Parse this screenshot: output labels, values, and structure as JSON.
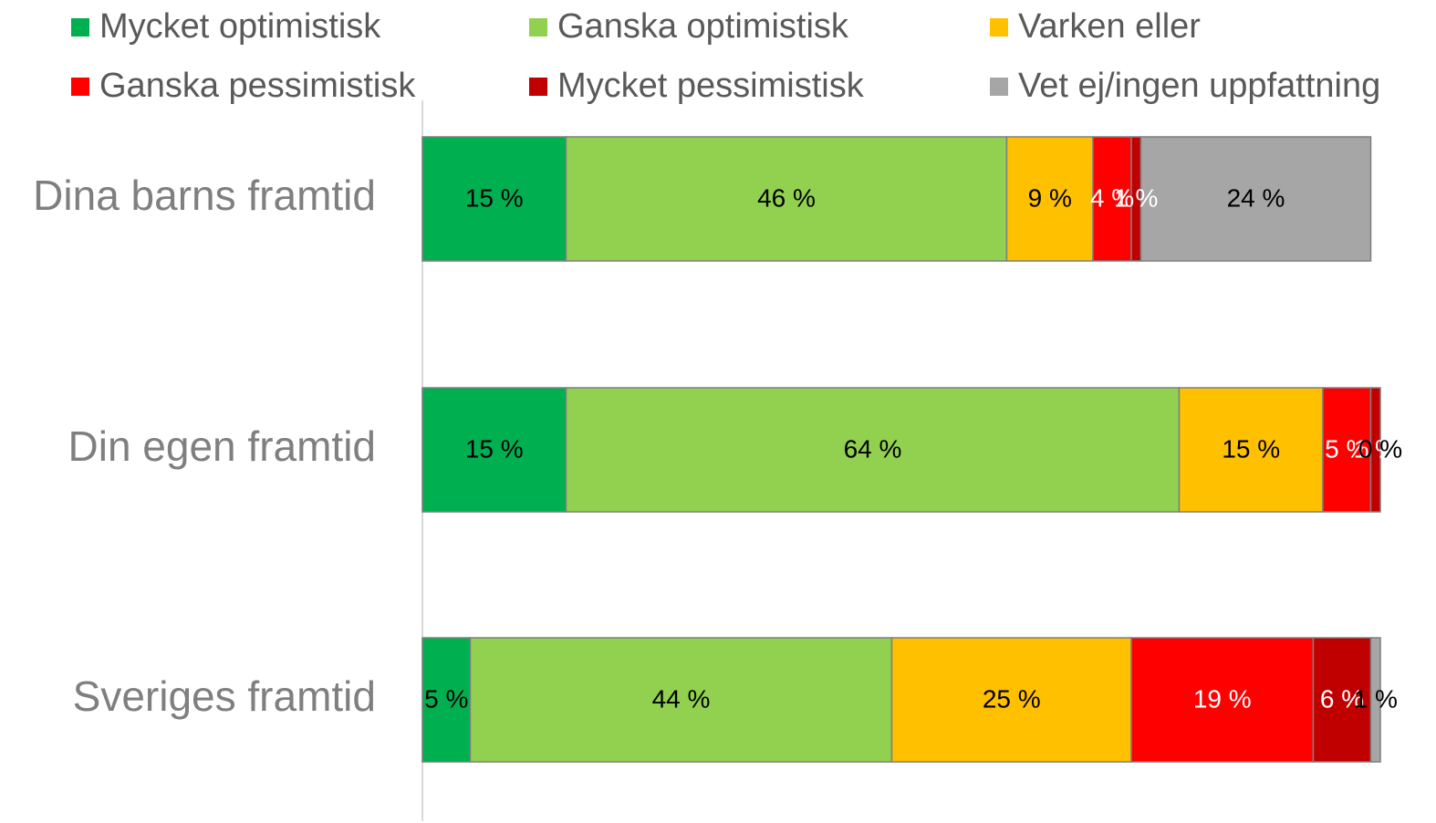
{
  "chart_data": {
    "type": "stacked-bar-horizontal",
    "categories": [
      "Dina barns framtid",
      "Din egen framtid",
      "Sveriges framtid"
    ],
    "xlim": [
      0,
      100
    ],
    "series": [
      {
        "name": "Mycket optimistisk",
        "color": "#00b050",
        "label_color": "#000000",
        "values": [
          15,
          15,
          5
        ],
        "value_labels": [
          "15 %",
          "15 %",
          "5 %"
        ]
      },
      {
        "name": "Ganska optimistisk",
        "color": "#92d050",
        "label_color": "#000000",
        "values": [
          46,
          64,
          44
        ],
        "value_labels": [
          "46 %",
          "64 %",
          "44 %"
        ]
      },
      {
        "name": "Varken eller",
        "color": "#ffc000",
        "label_color": "#000000",
        "values": [
          9,
          15,
          25
        ],
        "value_labels": [
          "9 %",
          "15 %",
          "25 %"
        ]
      },
      {
        "name": "Ganska pessimistisk",
        "color": "#ff0000",
        "label_color": "#ffffff",
        "values": [
          4,
          5,
          19
        ],
        "value_labels": [
          "4 %",
          "5 %",
          "19 %"
        ]
      },
      {
        "name": "Mycket pessimistisk",
        "color": "#c00000",
        "label_color": "#ffffff",
        "values": [
          1,
          1,
          6
        ],
        "value_labels": [
          "1 %",
          "1 %",
          "6 %"
        ]
      },
      {
        "name": "Vet ej/ingen uppfattning",
        "color": "#a6a6a6",
        "label_color": "#000000",
        "values": [
          24,
          0,
          1
        ],
        "value_labels": [
          "24 %",
          "0 %",
          "1 %"
        ]
      }
    ]
  }
}
